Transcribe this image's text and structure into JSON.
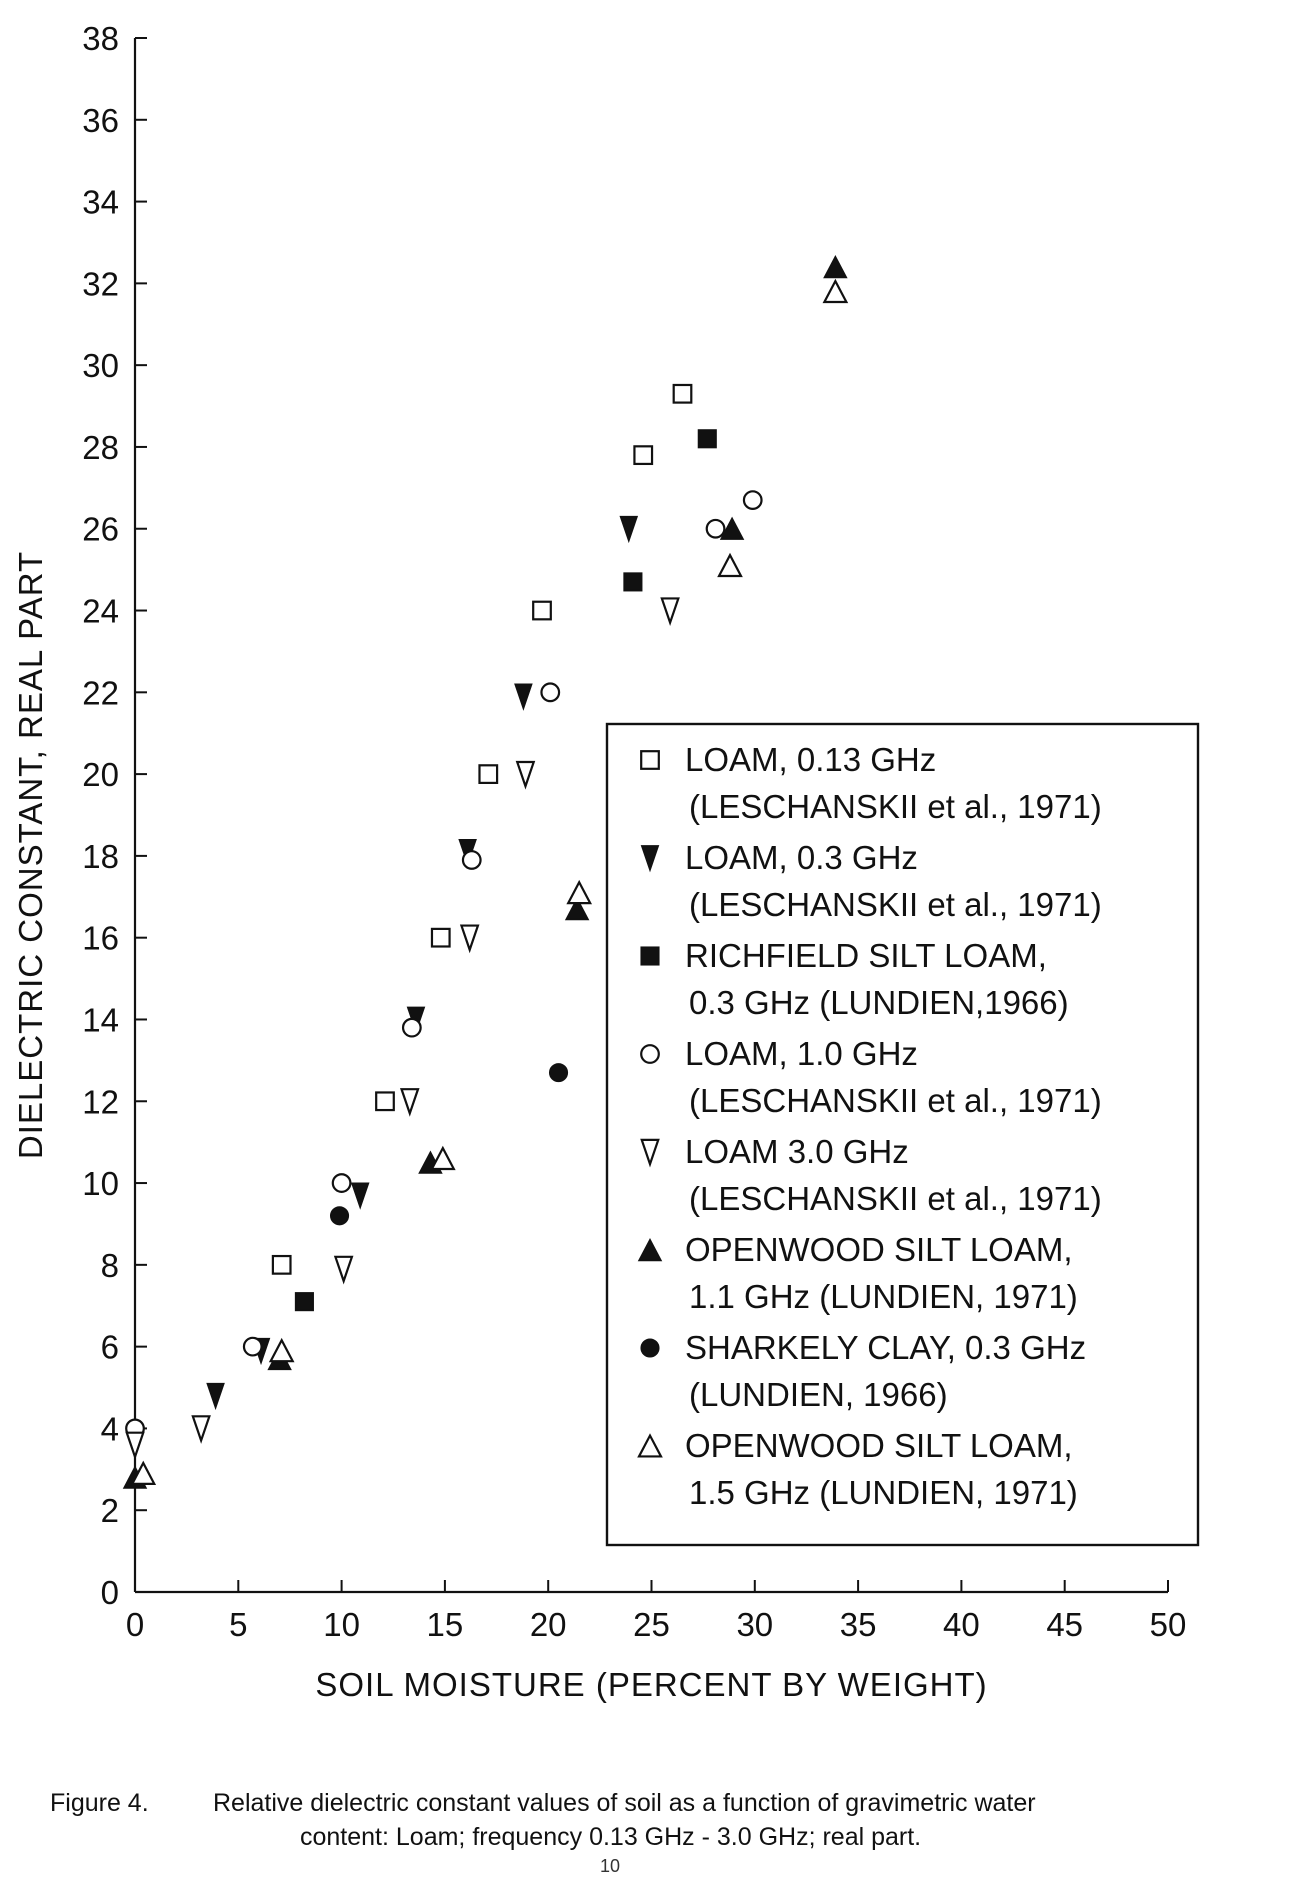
{
  "chart_data": {
    "type": "scatter",
    "title": "",
    "xlabel": "SOIL MOISTURE (PERCENT BY WEIGHT)",
    "ylabel": "DIELECTRIC CONSTANT, REAL PART",
    "xlim": [
      0,
      50
    ],
    "ylim": [
      0,
      38
    ],
    "xticks": [
      0,
      5,
      10,
      15,
      20,
      25,
      30,
      35,
      40,
      45,
      50
    ],
    "yticks": [
      0,
      2,
      4,
      6,
      8,
      10,
      12,
      14,
      16,
      18,
      20,
      22,
      24,
      26,
      28,
      30,
      32,
      34,
      36,
      38
    ],
    "grid": false,
    "legend_position": "right",
    "series": [
      {
        "marker": "square-open",
        "legend": [
          "LOAM, 0.13 GHz",
          "(LESCHANSKII et al., 1971)"
        ],
        "points": [
          [
            7.1,
            8.0
          ],
          [
            12.1,
            12.0
          ],
          [
            14.8,
            16.0
          ],
          [
            17.1,
            20.0
          ],
          [
            19.7,
            24.0
          ],
          [
            24.6,
            27.8
          ],
          [
            26.5,
            29.3
          ]
        ]
      },
      {
        "marker": "triangle-down-filled",
        "legend": [
          "LOAM, 0.3 GHz",
          "(LESCHANSKII et al., 1971)"
        ],
        "points": [
          [
            3.9,
            4.8
          ],
          [
            6.1,
            5.9
          ],
          [
            10.9,
            9.7
          ],
          [
            13.6,
            14.0
          ],
          [
            16.1,
            18.1
          ],
          [
            18.8,
            21.9
          ],
          [
            23.9,
            26.0
          ]
        ]
      },
      {
        "marker": "square-filled",
        "legend": [
          "RICHFIELD SILT LOAM,",
          "0.3 GHz (LUNDIEN,1966)"
        ],
        "points": [
          [
            8.2,
            7.1
          ],
          [
            24.1,
            24.7
          ],
          [
            27.7,
            28.2
          ]
        ]
      },
      {
        "marker": "circle-open",
        "legend": [
          "LOAM, 1.0 GHz",
          "(LESCHANSKII et al., 1971)"
        ],
        "points": [
          [
            0.0,
            4.0
          ],
          [
            5.7,
            6.0
          ],
          [
            10.0,
            10.0
          ],
          [
            13.4,
            13.8
          ],
          [
            16.3,
            17.9
          ],
          [
            20.1,
            22.0
          ],
          [
            28.1,
            26.0
          ],
          [
            29.9,
            26.7
          ]
        ]
      },
      {
        "marker": "triangle-down-open",
        "legend": [
          "LOAM 3.0 GHz",
          "(LESCHANSKII et al., 1971)"
        ],
        "points": [
          [
            0.0,
            3.6
          ],
          [
            3.2,
            4.0
          ],
          [
            10.1,
            7.9
          ],
          [
            13.3,
            12.0
          ],
          [
            16.2,
            16.0
          ],
          [
            18.9,
            20.0
          ],
          [
            25.9,
            24.0
          ]
        ]
      },
      {
        "marker": "triangle-up-filled",
        "legend": [
          "OPENWOOD SILT LOAM,",
          "1.1 GHz (LUNDIEN, 1971)"
        ],
        "points": [
          [
            0.0,
            2.8
          ],
          [
            7.0,
            5.7
          ],
          [
            14.3,
            10.5
          ],
          [
            21.4,
            16.7
          ],
          [
            28.9,
            26.0
          ],
          [
            33.9,
            32.4
          ]
        ]
      },
      {
        "marker": "circle-filled",
        "legend": [
          "SHARKELY CLAY, 0.3 GHz",
          "(LUNDIEN, 1966)"
        ],
        "points": [
          [
            9.9,
            9.2
          ],
          [
            20.5,
            12.7
          ]
        ]
      },
      {
        "marker": "triangle-up-open",
        "legend": [
          "OPENWOOD SILT LOAM,",
          "1.5 GHz  (LUNDIEN, 1971)"
        ],
        "points": [
          [
            0.4,
            2.9
          ],
          [
            7.1,
            5.9
          ],
          [
            14.9,
            10.6
          ],
          [
            21.5,
            17.1
          ],
          [
            28.8,
            25.1
          ],
          [
            33.9,
            31.8
          ]
        ]
      }
    ]
  },
  "caption": {
    "label": "Figure 4.",
    "line1": "Relative dielectric constant values of soil as a function of gravimetric water",
    "line2": "content:  Loam; frequency 0.13 GHz - 3.0 GHz; real part."
  },
  "page_number": "10"
}
